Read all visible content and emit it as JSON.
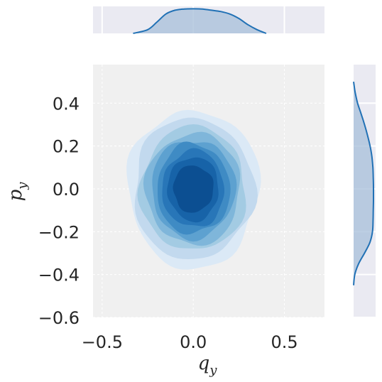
{
  "chart_data": {
    "type": "kde-joint",
    "x_axis": {
      "label": "q",
      "label_sub": "y",
      "lim": [
        -0.55,
        0.72
      ],
      "ticks": [
        -0.5,
        0.0,
        0.5
      ],
      "tick_labels": [
        "−0.5",
        "0.0",
        "0.5"
      ]
    },
    "y_axis": {
      "label": "p",
      "label_sub": "y",
      "lim": [
        -0.6,
        0.58
      ],
      "ticks": [
        -0.6,
        -0.4,
        -0.2,
        0.0,
        0.2,
        0.4
      ],
      "tick_labels": [
        "−0.6",
        "−0.4",
        "−0.2",
        "0.0",
        "0.2",
        "0.4"
      ]
    },
    "grid": true,
    "joint_density": {
      "center": [
        0.0,
        0.0
      ],
      "levels": [
        {
          "x_half_width": 0.36,
          "y_half_height": 0.37,
          "color": "#dbe9f6"
        },
        {
          "x_half_width": 0.33,
          "y_half_height": 0.33,
          "color": "#c2d9ee"
        },
        {
          "x_half_width": 0.29,
          "y_half_height": 0.29,
          "color": "#a3cbe3"
        },
        {
          "x_half_width": 0.26,
          "y_half_height": 0.26,
          "color": "#7fb6da"
        },
        {
          "x_half_width": 0.23,
          "y_half_height": 0.23,
          "color": "#5da1d0"
        },
        {
          "x_half_width": 0.2,
          "y_half_height": 0.21,
          "color": "#3f8bc4"
        },
        {
          "x_half_width": 0.17,
          "y_half_height": 0.18,
          "color": "#2876b8"
        },
        {
          "x_half_width": 0.14,
          "y_half_height": 0.15,
          "color": "#1763a8"
        },
        {
          "x_half_width": 0.11,
          "y_half_height": 0.11,
          "color": "#0c4f92"
        }
      ]
    },
    "marginal_x": {
      "x": [
        -0.33,
        -0.25,
        -0.2,
        -0.15,
        -0.1,
        -0.05,
        0.0,
        0.05,
        0.1,
        0.15,
        0.2,
        0.25,
        0.3,
        0.35,
        0.4
      ],
      "density": [
        0.0,
        0.15,
        0.45,
        0.78,
        0.93,
        0.98,
        0.99,
        0.98,
        0.93,
        0.88,
        0.78,
        0.6,
        0.35,
        0.15,
        0.0
      ]
    },
    "marginal_y": {
      "y": [
        -0.45,
        -0.4,
        -0.35,
        -0.3,
        -0.25,
        -0.2,
        -0.15,
        -0.1,
        -0.05,
        0.0,
        0.05,
        0.1,
        0.15,
        0.2,
        0.25,
        0.3,
        0.35,
        0.4,
        0.45,
        0.5
      ],
      "density": [
        0.0,
        0.06,
        0.25,
        0.55,
        0.82,
        0.95,
        0.98,
        0.99,
        1.0,
        1.0,
        0.99,
        0.97,
        0.92,
        0.83,
        0.7,
        0.55,
        0.38,
        0.2,
        0.08,
        0.0
      ]
    },
    "colors": {
      "panel_bg": "#eaeaf2",
      "joint_bg": "#f0f0f0",
      "grid": "#ffffff",
      "marginal_line": "#2171b5",
      "marginal_fill": "#a7bfd9"
    }
  }
}
